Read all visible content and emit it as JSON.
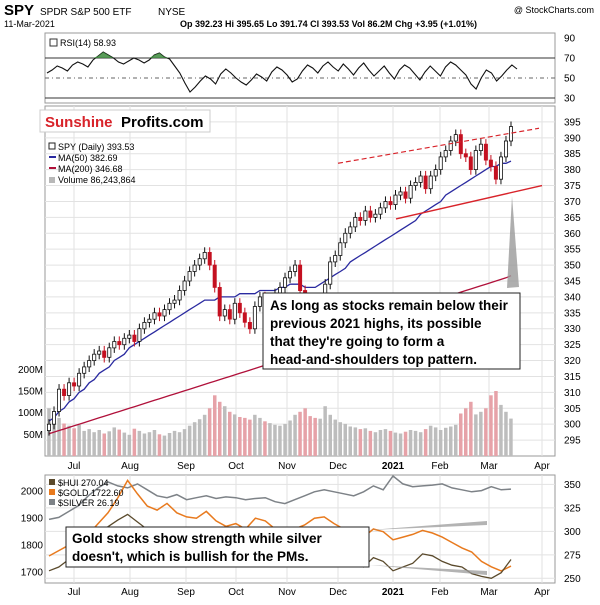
{
  "header": {
    "symbol": "SPY",
    "name": "SPDR S&P 500 ETF",
    "exchange": "NYSE",
    "date": "11-Mar-2021",
    "quote": "Op 392.23  Hi 395.65  Lo 391.74  Cl 393.53  Vol 86.2M  Chg +3.95 (+1.01%)",
    "chg": "▲",
    "credit": "@ StockCharts.com"
  },
  "logo": {
    "part1": "Sunshine",
    "part2": "Profits.com"
  },
  "chart_data": [
    {
      "type": "line",
      "panel": "rsi",
      "legend": "RSI(14) 58.93",
      "ylim": [
        25,
        95
      ],
      "y_ticks": [
        30,
        50,
        70,
        90
      ],
      "reference_lines": [
        70,
        50,
        30
      ],
      "values": [
        55,
        58,
        62,
        60,
        57,
        63,
        66,
        64,
        61,
        68,
        72,
        76,
        73,
        70,
        66,
        64,
        67,
        70,
        68,
        65,
        68,
        73,
        75,
        71,
        69,
        62,
        55,
        45,
        36,
        41,
        47,
        52,
        49,
        44,
        54,
        59,
        55,
        50,
        46,
        43,
        48,
        54,
        51,
        47,
        56,
        61,
        58,
        53,
        46,
        49,
        57,
        63,
        60,
        55,
        62,
        66,
        61,
        57,
        64,
        59,
        53,
        60,
        65,
        58,
        52,
        57,
        62,
        55,
        49,
        58,
        63,
        60,
        54,
        48,
        56,
        62,
        57,
        52,
        61,
        66,
        63,
        58,
        53,
        44,
        39,
        50,
        58,
        55,
        47,
        52,
        58,
        63,
        59
      ]
    },
    {
      "type": "candlestick",
      "panel": "price",
      "legend": [
        "SPY (Daily) 393.53",
        "MA(50) 382.69",
        "MA(200) 346.68",
        "Volume 86,243,864"
      ],
      "ylim": [
        290,
        400
      ],
      "y_ticks": [
        295,
        300,
        305,
        310,
        315,
        320,
        325,
        330,
        335,
        340,
        345,
        350,
        355,
        360,
        365,
        370,
        375,
        380,
        385,
        390,
        395
      ],
      "volume_ticks": [
        "50M",
        "100M",
        "150M",
        "200M"
      ],
      "volume_ylim": [
        0,
        210
      ],
      "x_labels": [
        "Jul",
        "Aug",
        "Sep",
        "Oct",
        "Nov",
        "Dec",
        "2021",
        "Feb",
        "Mar",
        "Apr"
      ],
      "close": [
        300,
        304,
        311,
        309,
        313,
        312,
        316,
        318,
        320,
        322,
        323,
        321,
        324,
        326,
        325,
        327,
        328,
        326,
        330,
        332,
        333,
        335,
        334,
        336,
        338,
        339,
        342,
        345,
        348,
        350,
        352,
        354,
        350,
        343,
        334,
        336,
        333,
        338,
        335,
        332,
        330,
        337,
        340,
        334,
        339,
        341,
        343,
        346,
        348,
        350,
        342,
        336,
        330,
        327,
        337,
        344,
        351,
        353,
        357,
        360,
        362,
        365,
        364,
        367,
        365,
        366,
        368,
        370,
        369,
        372,
        373,
        371,
        375,
        376,
        378,
        374,
        378,
        380,
        384,
        386,
        389,
        391,
        385,
        384,
        380,
        386,
        388,
        383,
        381,
        377,
        384,
        389,
        393.53
      ],
      "ma50": [
        301,
        302,
        304,
        305,
        307,
        308,
        310,
        311,
        313,
        314,
        316,
        317,
        318,
        320,
        321,
        322,
        324,
        325,
        326,
        327,
        328,
        329,
        330,
        331,
        332,
        333,
        334,
        335,
        336,
        337,
        338,
        339,
        339,
        339,
        340,
        340,
        340,
        340,
        341,
        341,
        341,
        341,
        342,
        342,
        342,
        342,
        343,
        343,
        344,
        344,
        344,
        343,
        343,
        343,
        344,
        345,
        346,
        347,
        348,
        349,
        351,
        352,
        353,
        354,
        355,
        356,
        357,
        358,
        359,
        360,
        361,
        362,
        363,
        364,
        366,
        367,
        368,
        369,
        370,
        372,
        373,
        374,
        375,
        376,
        377,
        378,
        379,
        380,
        381,
        381,
        382,
        382,
        382.69
      ],
      "ma200": [
        297,
        297.5,
        298,
        298.5,
        299,
        299.5,
        300,
        300.5,
        301,
        301.5,
        302,
        302.5,
        303,
        303.5,
        304,
        304.5,
        305,
        305.5,
        306,
        306.5,
        307,
        307.5,
        308,
        308.5,
        309,
        309.5,
        310,
        310.5,
        311,
        311.5,
        312,
        312.5,
        313,
        313.5,
        314,
        314.5,
        315,
        315.5,
        316,
        316.5,
        317,
        317.5,
        318,
        318.5,
        319,
        319.5,
        320,
        320.5,
        321,
        321.5,
        322,
        322.5,
        323,
        323.5,
        324,
        324.5,
        325,
        325.5,
        326,
        326.5,
        327,
        327.5,
        328,
        328.5,
        329,
        329.5,
        330,
        330.5,
        331,
        331.5,
        332,
        332.5,
        333,
        333.5,
        334,
        335,
        336,
        337,
        338,
        339,
        340,
        341,
        341.5,
        342,
        342.5,
        343,
        343.5,
        344,
        344.5,
        345,
        345.5,
        346,
        346.68
      ],
      "volume": [
        110,
        95,
        88,
        75,
        70,
        64,
        72,
        58,
        62,
        55,
        60,
        52,
        57,
        66,
        61,
        54,
        49,
        63,
        58,
        52,
        55,
        60,
        50,
        47,
        53,
        58,
        55,
        62,
        70,
        78,
        85,
        95,
        110,
        140,
        125,
        115,
        102,
        96,
        90,
        88,
        84,
        95,
        88,
        80,
        76,
        72,
        70,
        74,
        82,
        95,
        102,
        110,
        92,
        88,
        86,
        115,
        95,
        84,
        78,
        74,
        68,
        66,
        62,
        64,
        58,
        55,
        60,
        62,
        58,
        54,
        52,
        56,
        60,
        58,
        55,
        62,
        70,
        66,
        60,
        65,
        68,
        72,
        98,
        110,
        125,
        96,
        102,
        110,
        140,
        150,
        118,
        102,
        86.2
      ],
      "trendline_upper": [
        {
          "x": "Dec",
          "y": 382
        },
        {
          "x": "Mar",
          "y": 391
        }
      ],
      "trendline_lower": [
        {
          "x": "Dec",
          "y": 363
        },
        {
          "x": "Apr",
          "y": 375
        }
      ],
      "annotation": "As long as stocks remain below their previous 2021 highs, its possible that they're going to form a head-and-shoulders top pattern."
    },
    {
      "type": "line",
      "panel": "metals",
      "legend": [
        "$HUI 270.04",
        "$GOLD 1722.60",
        "$SILVER 26.19"
      ],
      "y_ticks_left": [
        1700,
        1800,
        1900,
        2000
      ],
      "y_ticks_right": [
        250,
        275,
        300,
        325,
        350
      ],
      "ylim_left": [
        1660,
        2060
      ],
      "ylim_right": [
        245,
        360
      ],
      "x_labels": [
        "Jul",
        "Aug",
        "Sep",
        "Oct",
        "Nov",
        "Dec",
        "2021",
        "Feb",
        "Mar",
        "Apr"
      ],
      "series": [
        {
          "name": "$HUI 270.04",
          "color": "#5a4a2c",
          "values": [
            258,
            262,
            270,
            275,
            285,
            298,
            305,
            312,
            318,
            310,
            302,
            296,
            300,
            292,
            288,
            284,
            296,
            290,
            282,
            286,
            276,
            288,
            282,
            272,
            270,
            278,
            284,
            290,
            294,
            286,
            276,
            266,
            262,
            272,
            268,
            258,
            262,
            266,
            276,
            274,
            268,
            264,
            262,
            255,
            252,
            250,
            256,
            270.04
          ]
        },
        {
          "name": "$GOLD 1722.60",
          "color": "#e87a1e",
          "values": [
            1760,
            1780,
            1800,
            1815,
            1840,
            1880,
            1920,
            1975,
            2040,
            1990,
            1945,
            1930,
            1955,
            1920,
            1905,
            1900,
            1925,
            1890,
            1870,
            1880,
            1860,
            1900,
            1890,
            1860,
            1845,
            1860,
            1875,
            1900,
            1905,
            1880,
            1860,
            1840,
            1830,
            1860,
            1850,
            1820,
            1830,
            1840,
            1855,
            1845,
            1830,
            1810,
            1790,
            1775,
            1740,
            1720,
            1705,
            1722.6
          ]
        },
        {
          "name": "$SILVER 26.19",
          "color": "#7d8287",
          "values": [
            18.5,
            19.0,
            20.5,
            22.0,
            24.5,
            26.5,
            28.0,
            27.0,
            26.5,
            27.5,
            26.0,
            24.5,
            24.0,
            24.8,
            23.5,
            24.0,
            24.5,
            23.8,
            24.2,
            24.0,
            23.5,
            23.8,
            24.0,
            23.0,
            22.5,
            23.5,
            24.5,
            25.5,
            26.0,
            25.5,
            25.0,
            24.5,
            25.5,
            27.0,
            26.0,
            29.5,
            27.5,
            26.8,
            27.0,
            27.2,
            27.5,
            26.5,
            26.0,
            25.5,
            25.8,
            26.8,
            26.0,
            26.19
          ]
        }
      ],
      "annotation": "Gold stocks show strength while silver doesn't, which is bullish for the PMs."
    }
  ]
}
